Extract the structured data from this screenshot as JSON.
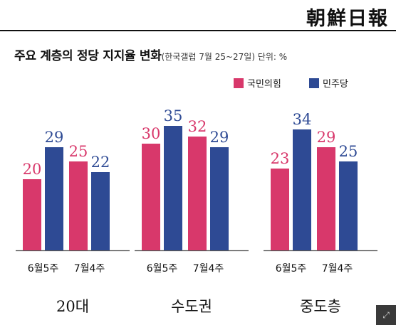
{
  "masthead": {
    "brand": "朝鮮日報"
  },
  "title": {
    "main": "주요 계층의 정당 지지율 변화",
    "sub": "(한국갤럽 7월 25~27일) 단위: %"
  },
  "colors": {
    "ppp": "#d8386b",
    "dp": "#2e4a94",
    "baseline": "#555555"
  },
  "icons": {
    "expand": "expand-icon"
  },
  "chart_data": {
    "type": "bar",
    "title": "주요 계층의 정당 지지율 변화",
    "unit": "%",
    "legend": [
      "국민의힘",
      "민주당"
    ],
    "legend_placement": "top-right",
    "grid": false,
    "ylim": [
      0,
      40
    ],
    "groups": [
      {
        "name": "20대",
        "periods": [
          {
            "label": "6월5주",
            "values": [
              20,
              29
            ]
          },
          {
            "label": "7월4주",
            "values": [
              25,
              22
            ]
          }
        ]
      },
      {
        "name": "수도권",
        "periods": [
          {
            "label": "6월5주",
            "values": [
              30,
              35
            ]
          },
          {
            "label": "7월4주",
            "values": [
              32,
              29
            ]
          }
        ]
      },
      {
        "name": "중도층",
        "periods": [
          {
            "label": "6월5주",
            "values": [
              23,
              34
            ]
          },
          {
            "label": "7월4주",
            "values": [
              29,
              25
            ]
          }
        ]
      }
    ]
  }
}
